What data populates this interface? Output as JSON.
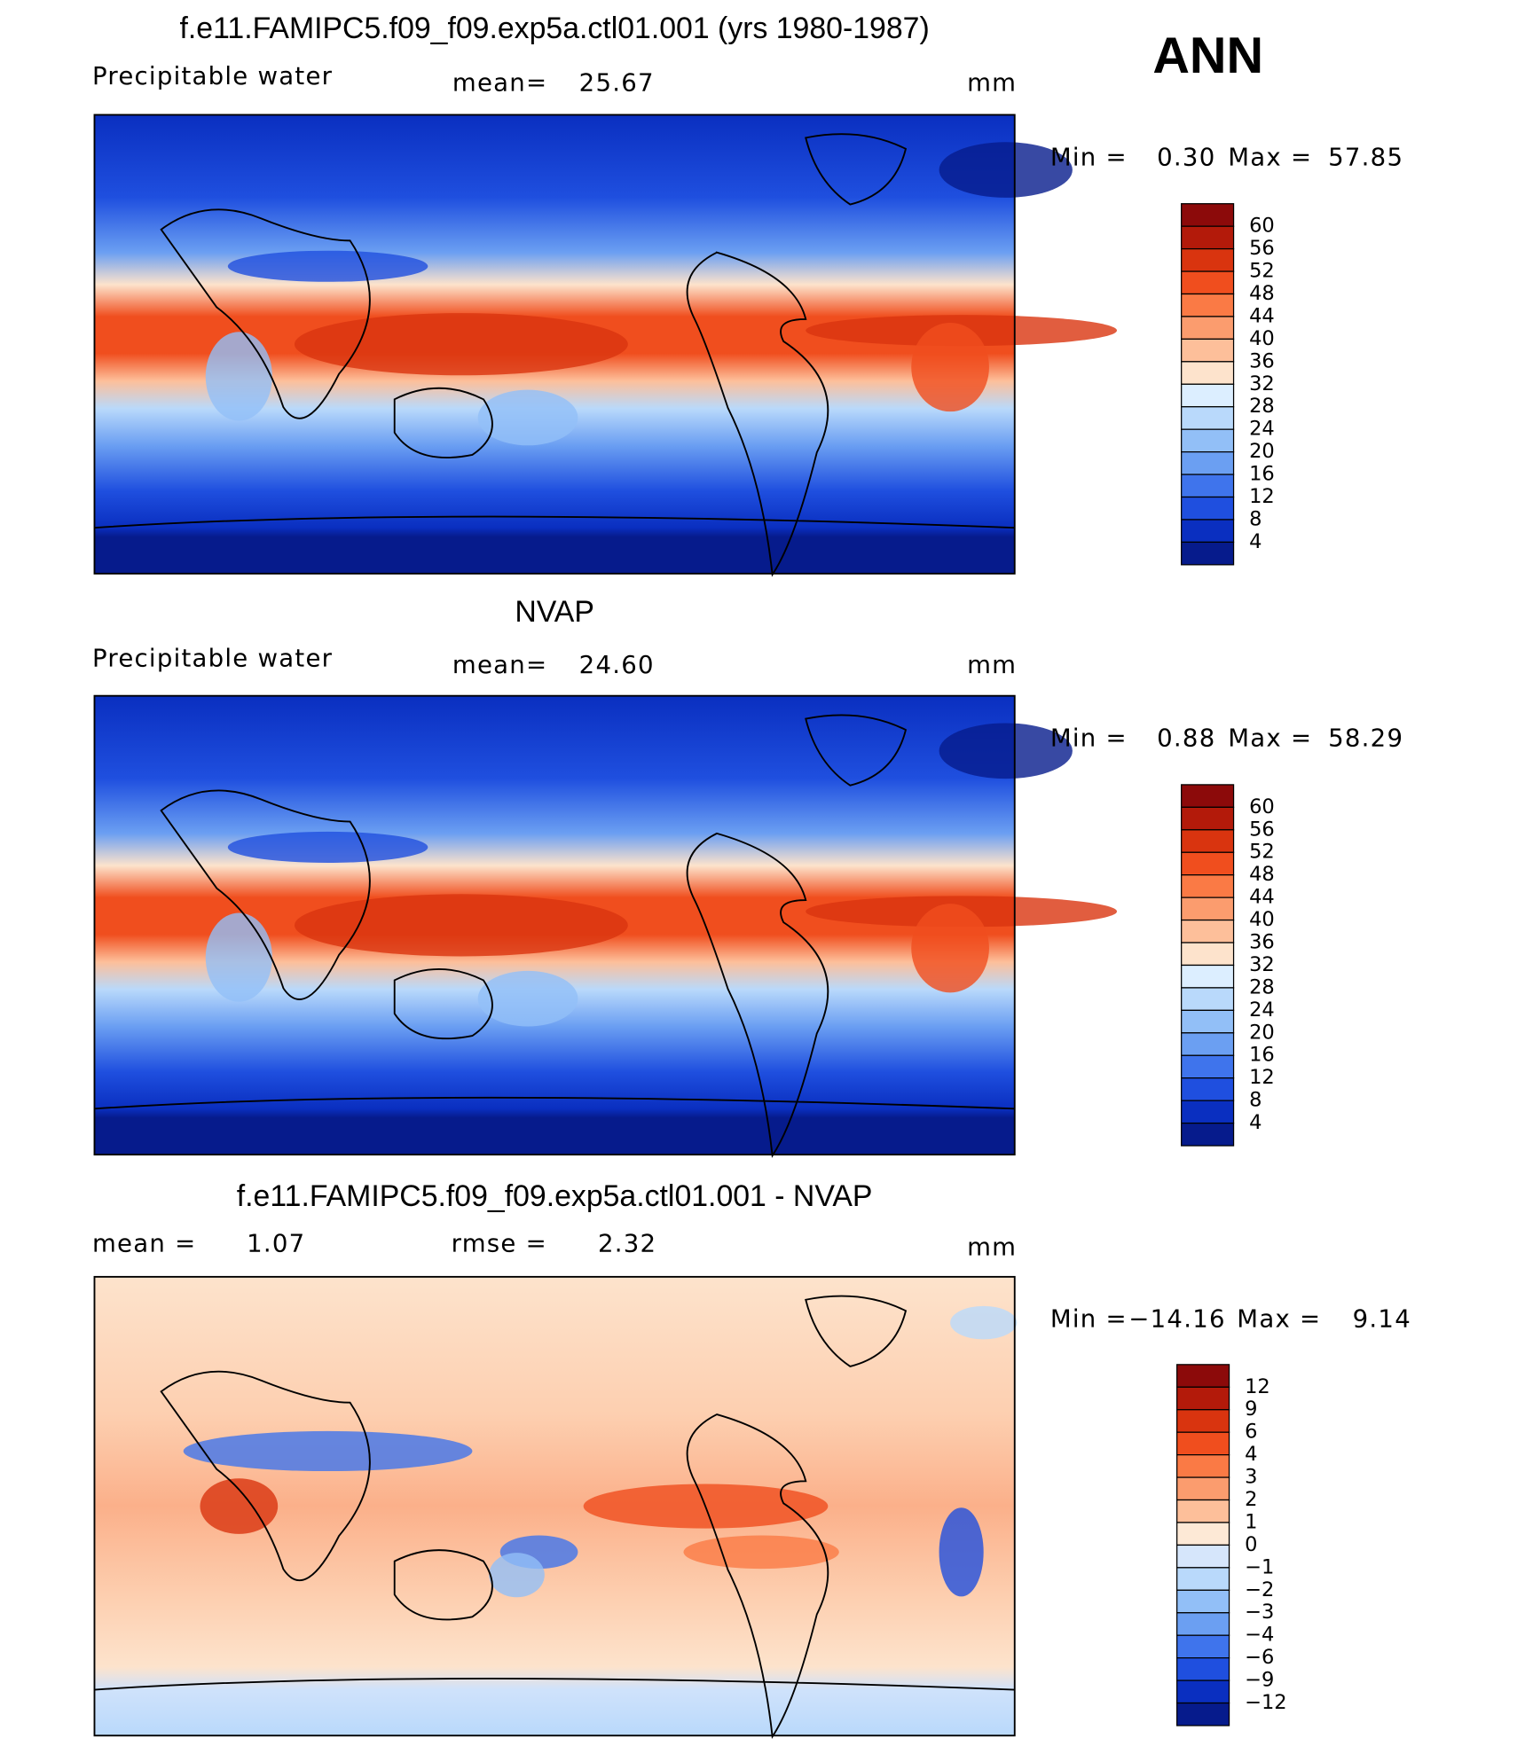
{
  "season": "ANN",
  "panels": [
    {
      "title": "f.e11.FAMIPC5.f09_f09.exp5a.ctl01.001 (yrs 1980-1987)",
      "left_label": "Precipitable  water",
      "stat_label": "mean=",
      "stat_value": "25.67",
      "units": "mm",
      "min_label": "Min  =",
      "min_value": "0.30",
      "max_label": "Max  =",
      "max_value": "57.85",
      "levels": [
        "60",
        "56",
        "52",
        "48",
        "44",
        "40",
        "36",
        "32",
        "28",
        "24",
        "20",
        "16",
        "12",
        "8",
        "4"
      ]
    },
    {
      "title": "NVAP",
      "left_label": "Precipitable  water",
      "stat_label": "mean=",
      "stat_value": "24.60",
      "units": "mm",
      "min_label": "Min  =",
      "min_value": "0.88",
      "max_label": "Max  =",
      "max_value": "58.29",
      "levels": [
        "60",
        "56",
        "52",
        "48",
        "44",
        "40",
        "36",
        "32",
        "28",
        "24",
        "20",
        "16",
        "12",
        "8",
        "4"
      ]
    },
    {
      "title": "f.e11.FAMIPC5.f09_f09.exp5a.ctl01.001 - NVAP",
      "left_label": "mean  =",
      "left_value": "1.07",
      "stat_label": "rmse  =",
      "stat_value": "2.32",
      "units": "mm",
      "min_label": "Min  =",
      "min_value": "−14.16",
      "max_label": "Max  =",
      "max_value": "9.14",
      "levels": [
        "12",
        "9",
        "6",
        "4",
        "3",
        "2",
        "1",
        "0",
        "−1",
        "−2",
        "−3",
        "−4",
        "−6",
        "−9",
        "−12"
      ]
    }
  ]
}
